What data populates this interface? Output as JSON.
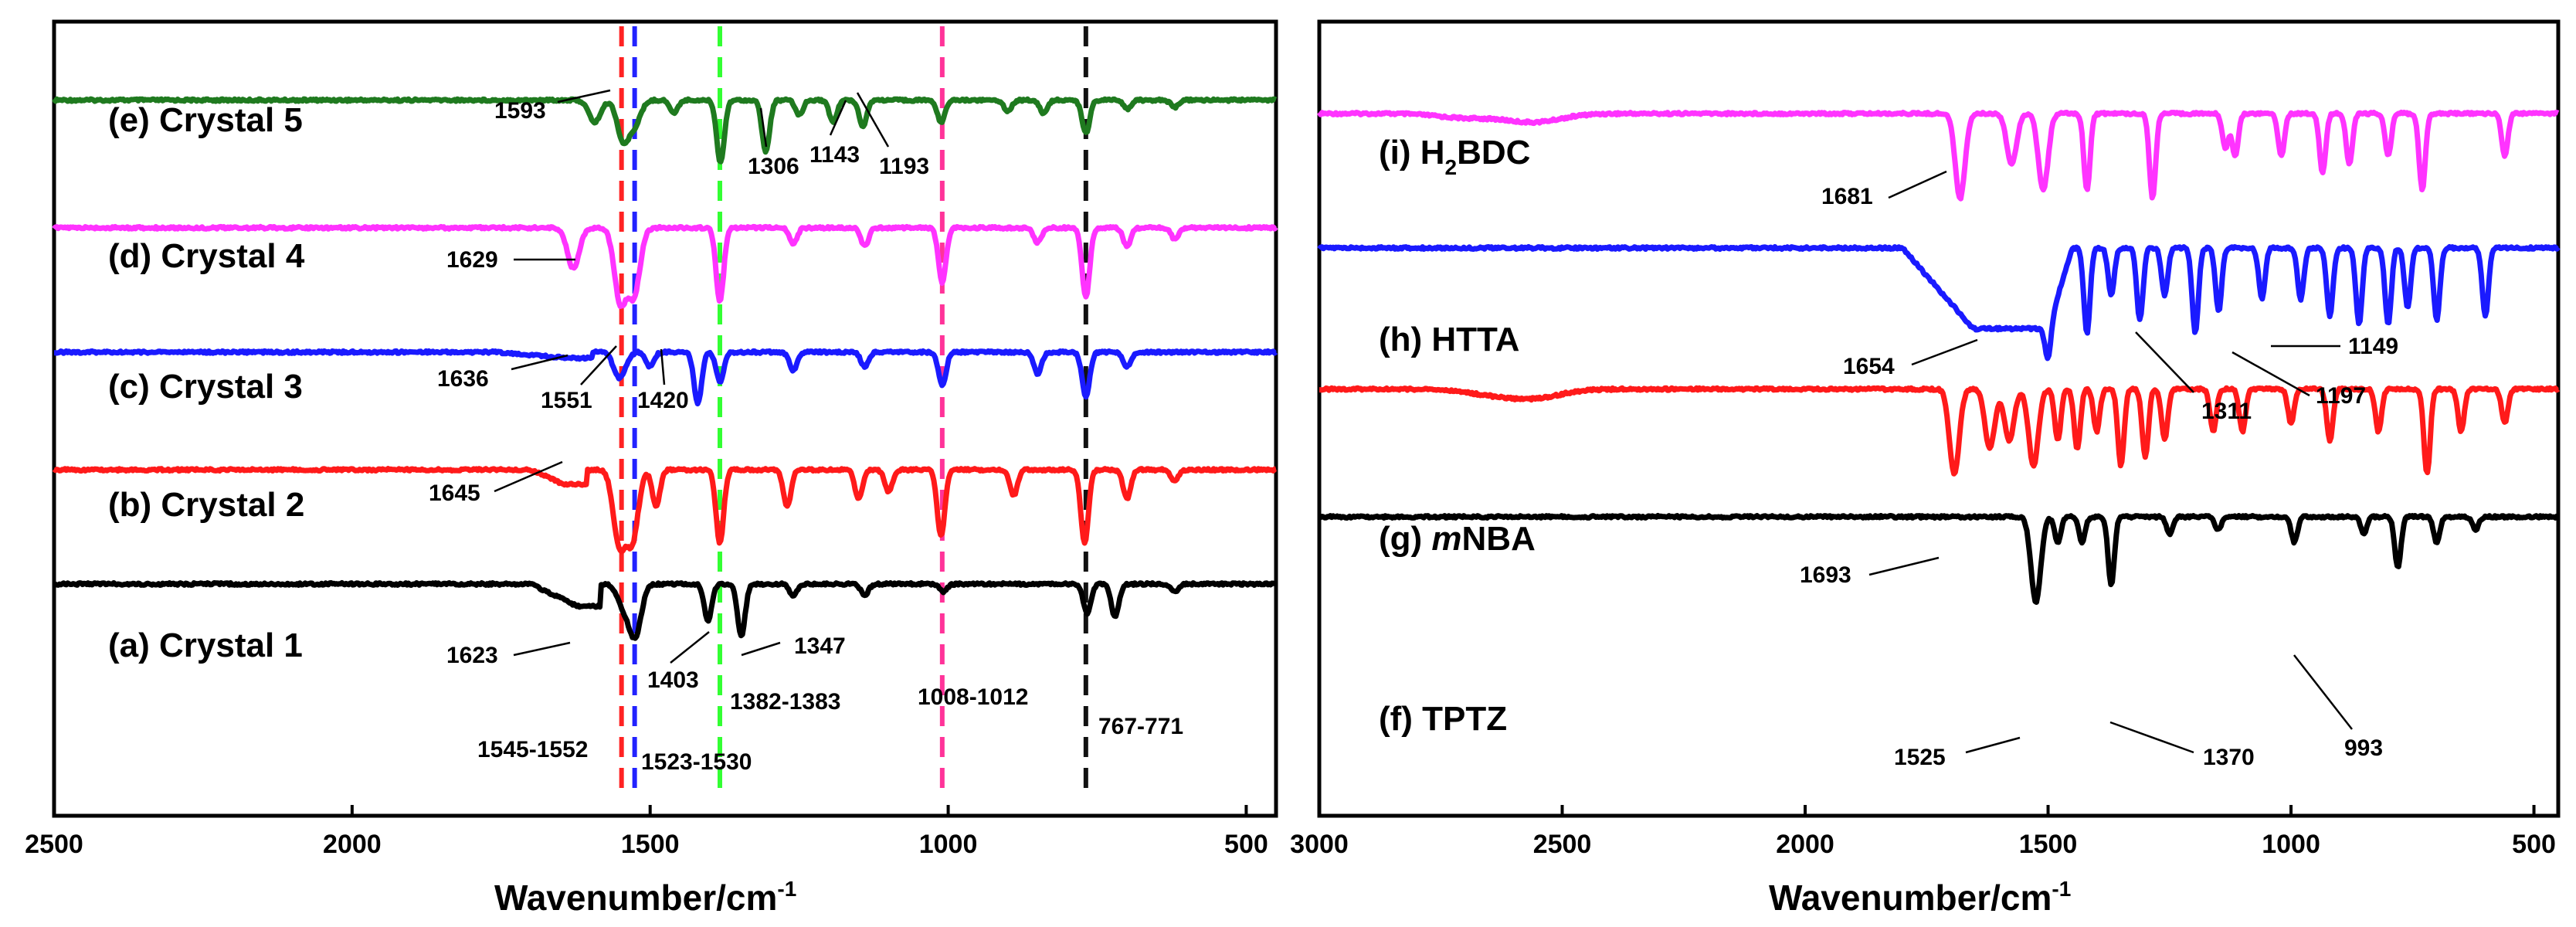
{
  "chart_data": [
    {
      "type": "line",
      "panel": "left",
      "title": "",
      "xlabel": "Wavenumber/cm",
      "xlabel_superscript": "-1",
      "ylabel": "",
      "xlim": [
        2500,
        450
      ],
      "xticks": [
        "2500",
        "2000",
        "1500",
        "1000",
        "500"
      ],
      "xtick_values": [
        2500,
        2000,
        1500,
        1000,
        500
      ],
      "series": [
        {
          "name": "(e) Crystal 5",
          "color": "#1f7a1f",
          "baseline_level": 0.92,
          "shoulder": null,
          "peaks": [
            [
              1593,
              0.3
            ],
            [
              1545,
              0.55
            ],
            [
              1525,
              0.3
            ],
            [
              1460,
              0.18
            ],
            [
              1382,
              0.85
            ],
            [
              1306,
              0.7
            ],
            [
              1250,
              0.2
            ],
            [
              1193,
              0.3
            ],
            [
              1143,
              0.35
            ],
            [
              1012,
              0.3
            ],
            [
              900,
              0.15
            ],
            [
              840,
              0.18
            ],
            [
              769,
              0.45
            ],
            [
              700,
              0.12
            ],
            [
              620,
              0.1
            ]
          ]
        },
        {
          "name": "(d) Crystal 4",
          "color": "#ff33ff",
          "baseline_level": 0.73,
          "shoulder": null,
          "peaks": [
            [
              1629,
              0.55
            ],
            [
              1550,
              1.0
            ],
            [
              1527,
              0.9
            ],
            [
              1383,
              1.0
            ],
            [
              1260,
              0.22
            ],
            [
              1140,
              0.25
            ],
            [
              1010,
              0.75
            ],
            [
              850,
              0.2
            ],
            [
              769,
              0.95
            ],
            [
              700,
              0.25
            ],
            [
              620,
              0.15
            ]
          ]
        },
        {
          "name": "(c) Crystal 3",
          "color": "#1a1aff",
          "baseline_level": 0.545,
          "shoulder": {
            "start": 1760,
            "peak": 1636,
            "depth": 0.08
          },
          "peaks": [
            [
              1551,
              0.35
            ],
            [
              1500,
              0.2
            ],
            [
              1420,
              0.7
            ],
            [
              1383,
              0.4
            ],
            [
              1260,
              0.25
            ],
            [
              1140,
              0.2
            ],
            [
              1010,
              0.45
            ],
            [
              850,
              0.3
            ],
            [
              769,
              0.6
            ],
            [
              700,
              0.2
            ]
          ]
        },
        {
          "name": "(b) Crystal 2",
          "color": "#ff1a1a",
          "baseline_level": 0.37,
          "shoulder": {
            "start": 1700,
            "peak": 1645,
            "depth": 0.2
          },
          "peaks": [
            [
              1552,
              1.0
            ],
            [
              1530,
              0.95
            ],
            [
              1490,
              0.5
            ],
            [
              1383,
              1.0
            ],
            [
              1270,
              0.5
            ],
            [
              1150,
              0.4
            ],
            [
              1100,
              0.3
            ],
            [
              1012,
              0.9
            ],
            [
              890,
              0.35
            ],
            [
              771,
              1.0
            ],
            [
              700,
              0.4
            ],
            [
              620,
              0.15
            ]
          ]
        },
        {
          "name": "(a) Crystal 1",
          "color": "#000000",
          "baseline_level": 0.2,
          "shoulder": {
            "start": 1700,
            "peak": 1623,
            "depth": 0.3
          },
          "peaks": [
            [
              1545,
              0.3
            ],
            [
              1525,
              0.7
            ],
            [
              1403,
              0.5
            ],
            [
              1347,
              0.7
            ],
            [
              1260,
              0.15
            ],
            [
              1140,
              0.15
            ],
            [
              1008,
              0.1
            ],
            [
              767,
              0.4
            ],
            [
              720,
              0.45
            ],
            [
              620,
              0.1
            ]
          ]
        }
      ],
      "reference_lines": [
        {
          "x": 1548,
          "color": "#ff2222",
          "label": "1545-1552"
        },
        {
          "x": 1526,
          "color": "#2222ff",
          "label": "1523-1530"
        },
        {
          "x": 1383,
          "color": "#33ff33",
          "label": "1382-1383"
        },
        {
          "x": 1010,
          "color": "#ff3399",
          "label": "1008-1012"
        },
        {
          "x": 769,
          "color": "#111111",
          "label": "767-771"
        }
      ],
      "annotations": [
        "1593",
        "1306",
        "1143",
        "1193",
        "1629",
        "1636",
        "1551",
        "1420",
        "1645",
        "1623",
        "1403",
        "1347"
      ]
    },
    {
      "type": "line",
      "panel": "right",
      "title": "",
      "xlabel": "Wavenumber/cm",
      "xlabel_superscript": "-1",
      "ylabel": "",
      "xlim": [
        3000,
        450
      ],
      "xticks": [
        "3000",
        "2500",
        "2000",
        "1500",
        "1000",
        "500"
      ],
      "xtick_values": [
        3000,
        2500,
        2000,
        1500,
        1000,
        500
      ],
      "series": [
        {
          "name": "(i) H2BDC",
          "name_parts": [
            "(i) H",
            "2",
            "BDC"
          ],
          "color": "#ff33ff",
          "baseline_level": 0.9,
          "broad": [
            [
              2700,
              0.05
            ],
            [
              2560,
              0.1
            ]
          ],
          "peaks": [
            [
              1681,
              1.0
            ],
            [
              1575,
              0.6
            ],
            [
              1510,
              0.9
            ],
            [
              1420,
              0.9
            ],
            [
              1285,
              1.0
            ],
            [
              1135,
              0.4
            ],
            [
              1115,
              0.5
            ],
            [
              1020,
              0.5
            ],
            [
              935,
              0.7
            ],
            [
              880,
              0.6
            ],
            [
              800,
              0.5
            ],
            [
              730,
              0.9
            ],
            [
              560,
              0.5
            ]
          ]
        },
        {
          "name": "(h) HTTA",
          "color": "#1a1aff",
          "baseline_level": 0.7,
          "broad_drop": {
            "start": 1800,
            "peak": 1654,
            "depth": 0.95
          },
          "peaks": [
            [
              1500,
              0.35
            ],
            [
              1420,
              1.0
            ],
            [
              1370,
              0.55
            ],
            [
              1311,
              0.85
            ],
            [
              1260,
              0.55
            ],
            [
              1197,
              1.0
            ],
            [
              1149,
              0.75
            ],
            [
              1060,
              0.6
            ],
            [
              980,
              0.6
            ],
            [
              920,
              0.8
            ],
            [
              860,
              0.9
            ],
            [
              800,
              0.9
            ],
            [
              760,
              0.7
            ],
            [
              700,
              0.85
            ],
            [
              600,
              0.8
            ]
          ]
        },
        {
          "name": "(g) mNBA",
          "name_parts": [
            "(g) ",
            "m",
            "NBA"
          ],
          "color": "#ff1a1a",
          "baseline_level": 0.49,
          "broad": [
            [
              2650,
              0.05
            ],
            [
              2560,
              0.1
            ]
          ],
          "peaks": [
            [
              1693,
              1.0
            ],
            [
              1620,
              0.7
            ],
            [
              1580,
              0.6
            ],
            [
              1530,
              0.9
            ],
            [
              1480,
              0.6
            ],
            [
              1440,
              0.7
            ],
            [
              1400,
              0.5
            ],
            [
              1350,
              0.9
            ],
            [
              1300,
              0.8
            ],
            [
              1260,
              0.6
            ],
            [
              1160,
              0.5
            ],
            [
              1100,
              0.5
            ],
            [
              1000,
              0.4
            ],
            [
              920,
              0.6
            ],
            [
              820,
              0.5
            ],
            [
              720,
              1.0
            ],
            [
              650,
              0.5
            ],
            [
              560,
              0.4
            ]
          ]
        },
        {
          "name": "(f) TPTZ",
          "color": "#000000",
          "baseline_level": 0.3,
          "peaks": [
            [
              1525,
              1.0
            ],
            [
              1480,
              0.3
            ],
            [
              1430,
              0.3
            ],
            [
              1370,
              0.8
            ],
            [
              1250,
              0.2
            ],
            [
              1150,
              0.15
            ],
            [
              993,
              0.3
            ],
            [
              850,
              0.2
            ],
            [
              780,
              0.6
            ],
            [
              700,
              0.3
            ],
            [
              620,
              0.15
            ]
          ]
        }
      ],
      "annotations": [
        "1681",
        "1654",
        "1311",
        "1197",
        "1149",
        "1693",
        "1525",
        "1370",
        "993"
      ]
    }
  ]
}
